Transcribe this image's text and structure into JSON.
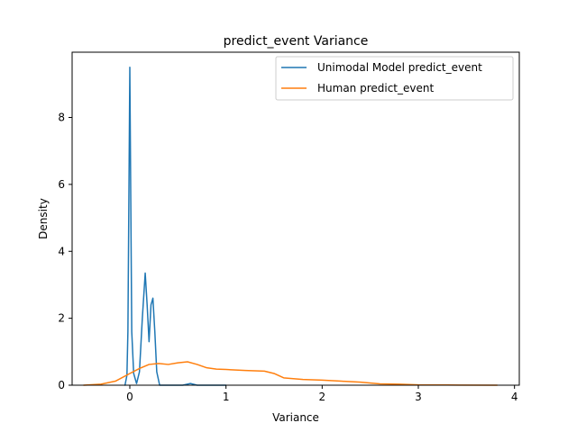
{
  "chart_data": {
    "type": "line",
    "title": "predict_event Variance",
    "xlabel": "Variance",
    "ylabel": "Density",
    "xlim": [
      -0.6,
      4.05
    ],
    "ylim": [
      0,
      9.95
    ],
    "xticks": [
      0,
      1,
      2,
      3,
      4
    ],
    "yticks": [
      0,
      2,
      4,
      6,
      8
    ],
    "grid": false,
    "legend_position": "top-right",
    "series": [
      {
        "name": "Unimodal Model predict_event",
        "color": "#1f77b4",
        "points": [
          [
            -0.05,
            0.0
          ],
          [
            -0.03,
            0.3
          ],
          [
            -0.02,
            1.6
          ],
          [
            -0.01,
            5.5
          ],
          [
            0.0,
            9.5
          ],
          [
            0.01,
            5.5
          ],
          [
            0.02,
            1.6
          ],
          [
            0.04,
            0.35
          ],
          [
            0.07,
            0.05
          ],
          [
            0.1,
            0.4
          ],
          [
            0.13,
            2.0
          ],
          [
            0.16,
            3.35
          ],
          [
            0.18,
            2.4
          ],
          [
            0.2,
            1.3
          ],
          [
            0.22,
            2.4
          ],
          [
            0.24,
            2.6
          ],
          [
            0.26,
            1.6
          ],
          [
            0.28,
            0.4
          ],
          [
            0.31,
            0.0
          ],
          [
            0.4,
            0.0
          ],
          [
            0.55,
            0.0
          ],
          [
            0.63,
            0.05
          ],
          [
            0.7,
            0.0
          ],
          [
            1.0,
            0.0
          ]
        ]
      },
      {
        "name": "Human predict_event",
        "color": "#ff7f0e",
        "points": [
          [
            -0.48,
            0.0
          ],
          [
            -0.3,
            0.03
          ],
          [
            -0.15,
            0.12
          ],
          [
            0.0,
            0.35
          ],
          [
            0.1,
            0.5
          ],
          [
            0.2,
            0.62
          ],
          [
            0.3,
            0.65
          ],
          [
            0.4,
            0.62
          ],
          [
            0.5,
            0.67
          ],
          [
            0.6,
            0.7
          ],
          [
            0.7,
            0.62
          ],
          [
            0.8,
            0.52
          ],
          [
            0.9,
            0.48
          ],
          [
            1.0,
            0.47
          ],
          [
            1.2,
            0.44
          ],
          [
            1.4,
            0.42
          ],
          [
            1.5,
            0.35
          ],
          [
            1.6,
            0.22
          ],
          [
            1.8,
            0.17
          ],
          [
            2.0,
            0.15
          ],
          [
            2.2,
            0.12
          ],
          [
            2.4,
            0.09
          ],
          [
            2.6,
            0.04
          ],
          [
            2.8,
            0.03
          ],
          [
            3.0,
            0.01
          ],
          [
            3.3,
            0.005
          ],
          [
            3.82,
            0.0
          ]
        ]
      }
    ]
  }
}
